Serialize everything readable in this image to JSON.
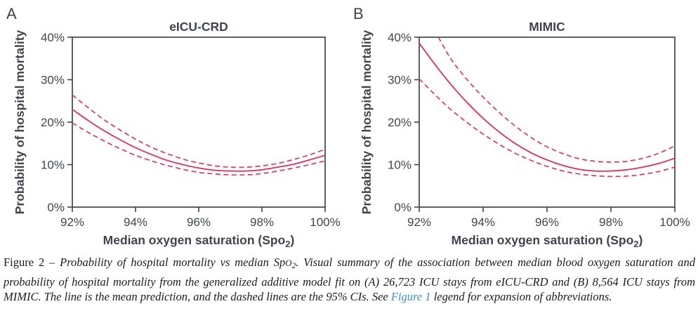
{
  "colors": {
    "curve": "#d93a5f",
    "axis": "#40444e",
    "text": "#40444e",
    "caption_text": "#1c1c1c",
    "caption_link": "#3e8fc5"
  },
  "chart_data": [
    {
      "id": "a",
      "panel_label": "A",
      "type": "line",
      "title": "eICU-CRD",
      "xlabel_prefix": "Median oxygen saturation (Spo",
      "xlabel_sub": "2",
      "xlabel_suffix": ")",
      "ylabel": "Probability of hospital mortality",
      "xlim": [
        92,
        100
      ],
      "ylim": [
        0,
        40
      ],
      "grid": false,
      "legend": "none",
      "xtick_values": [
        92,
        94,
        96,
        98,
        100
      ],
      "xtick_labels": [
        "92%",
        "94%",
        "96%",
        "98%",
        "100%"
      ],
      "ytick_values": [
        0,
        10,
        20,
        30,
        40
      ],
      "ytick_labels": [
        "0%",
        "10%",
        "20%",
        "30%",
        "40%"
      ],
      "series": [
        {
          "name": "Mean prediction",
          "key": "mean",
          "style": "solid",
          "x": [
            92,
            92.5,
            93,
            93.5,
            94,
            94.5,
            95,
            95.5,
            96,
            96.5,
            97,
            97.5,
            98,
            98.5,
            99,
            99.5,
            100
          ],
          "y": [
            23.0,
            20.4,
            18.0,
            15.9,
            14.0,
            12.4,
            11.0,
            10.0,
            9.2,
            8.7,
            8.5,
            8.5,
            8.8,
            9.4,
            10.1,
            11.1,
            12.2
          ]
        },
        {
          "name": "95% CI upper",
          "key": "ci-upper",
          "style": "dashed",
          "x": [
            92,
            92.5,
            93,
            93.5,
            94,
            94.5,
            95,
            95.5,
            96,
            96.5,
            97,
            97.5,
            98,
            98.5,
            99,
            99.5,
            100
          ],
          "y": [
            26.4,
            23.4,
            20.6,
            18.2,
            16.0,
            14.1,
            12.6,
            11.3,
            10.4,
            9.7,
            9.4,
            9.4,
            9.7,
            10.3,
            11.2,
            12.3,
            13.6
          ]
        },
        {
          "name": "95% CI lower",
          "key": "ci-lower",
          "style": "dashed",
          "x": [
            92,
            92.5,
            93,
            93.5,
            94,
            94.5,
            95,
            95.5,
            96,
            96.5,
            97,
            97.5,
            98,
            98.5,
            99,
            99.5,
            100
          ],
          "y": [
            19.8,
            17.6,
            15.6,
            13.8,
            12.2,
            10.9,
            9.8,
            8.9,
            8.2,
            7.8,
            7.6,
            7.6,
            7.9,
            8.5,
            9.2,
            10.0,
            10.9
          ]
        }
      ]
    },
    {
      "id": "b",
      "panel_label": "B",
      "type": "line",
      "title": "MIMIC",
      "xlabel_prefix": "Median oxygen saturation (Spo",
      "xlabel_sub": "2",
      "xlabel_suffix": ")",
      "ylabel": "Probability of hospital mortality",
      "xlim": [
        92,
        100
      ],
      "ylim": [
        0,
        40
      ],
      "grid": false,
      "legend": "none",
      "xtick_values": [
        92,
        94,
        96,
        98,
        100
      ],
      "xtick_labels": [
        "92%",
        "94%",
        "96%",
        "98%",
        "100%"
      ],
      "ytick_values": [
        0,
        10,
        20,
        30,
        40
      ],
      "ytick_labels": [
        "0%",
        "10%",
        "20%",
        "30%",
        "40%"
      ],
      "series": [
        {
          "name": "Mean prediction",
          "key": "mean",
          "style": "solid",
          "x": [
            92,
            92.5,
            93,
            93.5,
            94,
            94.5,
            95,
            95.5,
            96,
            96.5,
            97,
            97.5,
            98,
            98.5,
            99,
            99.5,
            100
          ],
          "y": [
            38.6,
            33.5,
            28.8,
            24.6,
            20.9,
            17.7,
            15.0,
            12.8,
            11.1,
            9.8,
            8.9,
            8.5,
            8.5,
            8.8,
            9.4,
            10.3,
            11.5
          ]
        },
        {
          "name": "95% CI upper",
          "key": "ci-upper",
          "style": "dashed",
          "x": [
            92.6,
            93,
            93.5,
            94,
            94.5,
            95,
            95.5,
            96,
            96.5,
            97,
            97.5,
            98,
            98.5,
            99,
            99.5,
            100
          ],
          "y": [
            40.0,
            34.8,
            30.0,
            25.9,
            22.3,
            19.1,
            16.4,
            14.2,
            12.6,
            11.4,
            10.8,
            10.6,
            10.8,
            11.5,
            12.7,
            14.4
          ]
        },
        {
          "name": "95% CI lower",
          "key": "ci-lower",
          "style": "dashed",
          "x": [
            92,
            92.5,
            93,
            93.5,
            94,
            94.5,
            95,
            95.5,
            96,
            96.5,
            97,
            97.5,
            98,
            98.5,
            99,
            99.5,
            100
          ],
          "y": [
            30.2,
            26.4,
            22.9,
            19.9,
            17.2,
            14.8,
            12.7,
            11.0,
            9.6,
            8.5,
            7.8,
            7.4,
            7.2,
            7.3,
            7.7,
            8.4,
            9.4
          ]
        }
      ]
    }
  ],
  "caption": {
    "label": "Figure 2 – ",
    "part1": "Probability of hospital mortality vs median Sp",
    "spo_o": "O",
    "spo_sub": "2",
    "part2": ". Visual summary of the association between median blood oxygen saturation and probability of hospital mortality from the generalized additive model fit on (A) 26,723 ICU stays from eICU-CRD and (B) 8,564 ICU stays from MIMIC. The line is the mean prediction, and the dashed lines are the 95% CIs. See ",
    "link": "Figure 1",
    "part3": " legend for expansion of abbreviations."
  }
}
